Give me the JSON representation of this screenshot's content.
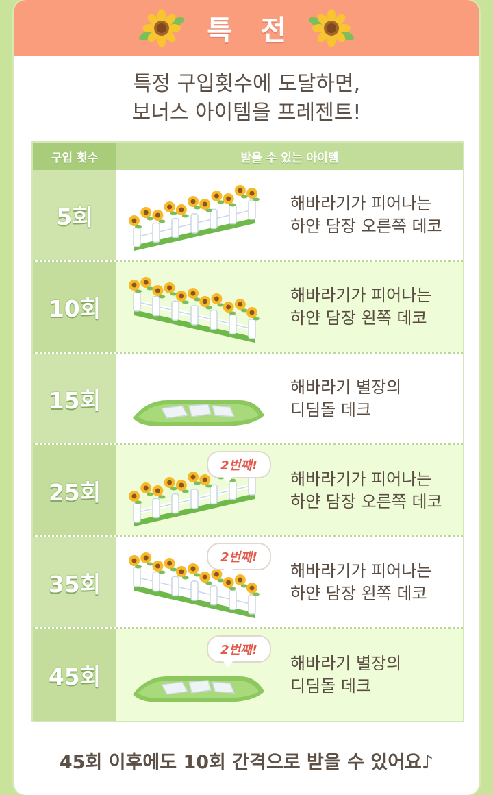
{
  "header": {
    "title": "특 전"
  },
  "intro": {
    "line1": "특정 구입횟수에 도달하면,",
    "line2": "보너스 아이템을 프레젠트!"
  },
  "table": {
    "col_count": "구입 횟수",
    "col_item": "받을 수 있는 아이템",
    "rows": [
      {
        "count": "5회",
        "line1": "해바라기가 피어나는",
        "line2": "하얀 담장 오른쪽 데코",
        "badge": "",
        "icon": "sunflower-fence-right-icon"
      },
      {
        "count": "10회",
        "line1": "해바라기가 피어나는",
        "line2": "하얀 담장 왼쪽 데코",
        "badge": "",
        "icon": "sunflower-fence-left-icon"
      },
      {
        "count": "15회",
        "line1": "해바라기 별장의",
        "line2": "디딤돌 데크",
        "badge": "",
        "icon": "stepping-stone-deck-icon"
      },
      {
        "count": "25회",
        "line1": "해바라기가 피어나는",
        "line2": "하얀 담장 오른쪽 데코",
        "badge": "2번째!",
        "icon": "sunflower-fence-right-icon"
      },
      {
        "count": "35회",
        "line1": "해바라기가 피어나는",
        "line2": "하얀 담장 왼쪽 데코",
        "badge": "2번째!",
        "icon": "sunflower-fence-left-icon"
      },
      {
        "count": "45회",
        "line1": "해바라기 별장의",
        "line2": "디딤돌 데크",
        "badge": "2번째!",
        "icon": "stepping-stone-deck-icon"
      }
    ]
  },
  "footer": {
    "text": "45회 이후에도 10회 간격으로 받을 수 있어요♪"
  },
  "colors": {
    "header": "#fa9d7d",
    "background": "#c9e39a",
    "badge_text": "#e15a4b",
    "text": "#5a4c42"
  }
}
